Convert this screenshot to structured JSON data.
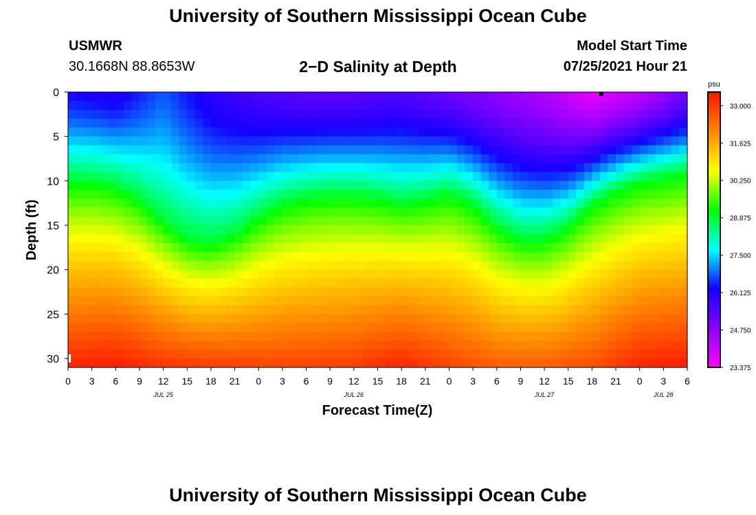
{
  "header": {
    "title": "University of Southern Mississippi Ocean Cube",
    "station": "USMWR",
    "coords": "30.1668N  88.8653W",
    "plot_title": "2−D Salinity at Depth",
    "start_label": "Model Start Time",
    "start_value": "07/25/2021 Hour 21"
  },
  "footer": {
    "title": "University of Southern Mississippi Ocean Cube"
  },
  "colors": {
    "scale": [
      "#ff00ff",
      "#8a00ff",
      "#1400ff",
      "#00ffff",
      "#00ff00",
      "#ffff00",
      "#ff8800",
      "#ff1400"
    ]
  },
  "chart_data": {
    "type": "heatmap",
    "title": "2−D Salinity at Depth",
    "xlabel": "Forecast Time(Z)",
    "ylabel": "Depth (ft)",
    "x_range_hours": [
      0,
      78
    ],
    "x_ticks": [
      "0",
      "3",
      "6",
      "9",
      "12",
      "15",
      "18",
      "21",
      "0",
      "3",
      "6",
      "9",
      "12",
      "15",
      "18",
      "21",
      "0",
      "3",
      "6",
      "9",
      "12",
      "15",
      "18",
      "21",
      "0",
      "3",
      "6"
    ],
    "date_labels": [
      {
        "label": "JUL 25",
        "hour": 12
      },
      {
        "label": "JUL 26",
        "hour": 36
      },
      {
        "label": "JUL 27",
        "hour": 60
      },
      {
        "label": "JUL 28",
        "hour": 75
      }
    ],
    "y_range": [
      0,
      31
    ],
    "y_ticks": [
      "0",
      "5",
      "10",
      "15",
      "20",
      "25",
      "30"
    ],
    "y_tick_values": [
      0,
      5,
      10,
      15,
      20,
      25,
      30
    ],
    "colorbar": {
      "unit": "psu",
      "range": [
        23.375,
        33.5
      ],
      "tick_labels": [
        "33.000",
        "31.625",
        "30.250",
        "28.875",
        "27.500",
        "26.125",
        "24.750",
        "23.375"
      ],
      "tick_values": [
        33.0,
        31.625,
        30.25,
        28.875,
        27.5,
        26.125,
        24.75,
        23.375
      ]
    },
    "hour_step": 1,
    "depth_step": 1,
    "interface_depth_profile": {
      "hours": [
        0,
        3,
        6,
        9,
        12,
        15,
        18,
        21,
        24,
        27,
        30,
        33,
        36,
        39,
        42,
        45,
        48,
        51,
        54,
        57,
        60,
        63,
        66,
        69,
        72,
        75,
        78
      ],
      "center_ft": [
        10,
        10,
        10.5,
        12,
        14.5,
        16.5,
        17,
        16,
        14,
        12.5,
        11.8,
        11.5,
        11.5,
        11.8,
        12.5,
        12,
        11.3,
        12.5,
        15,
        16.5,
        16.5,
        15,
        12.5,
        11,
        10,
        9.5,
        9
      ]
    },
    "surface_value_psu": {
      "hours": [
        0,
        6,
        12,
        18,
        24,
        30,
        36,
        42,
        48,
        54,
        60,
        66,
        72,
        78
      ],
      "values": [
        26.3,
        26.1,
        26.8,
        26.0,
        25.6,
        25.4,
        25.4,
        25.6,
        25.2,
        24.8,
        24.4,
        23.7,
        24.2,
        25.2
      ]
    },
    "bottom_value_psu": {
      "hours": [
        0,
        6,
        12,
        18,
        24,
        30,
        36,
        42,
        48,
        54,
        60,
        66,
        72,
        78
      ],
      "values": [
        33.3,
        33.4,
        33.1,
        33.0,
        32.9,
        32.9,
        33.0,
        33.3,
        32.9,
        32.6,
        32.6,
        32.8,
        33.3,
        33.4
      ]
    }
  }
}
